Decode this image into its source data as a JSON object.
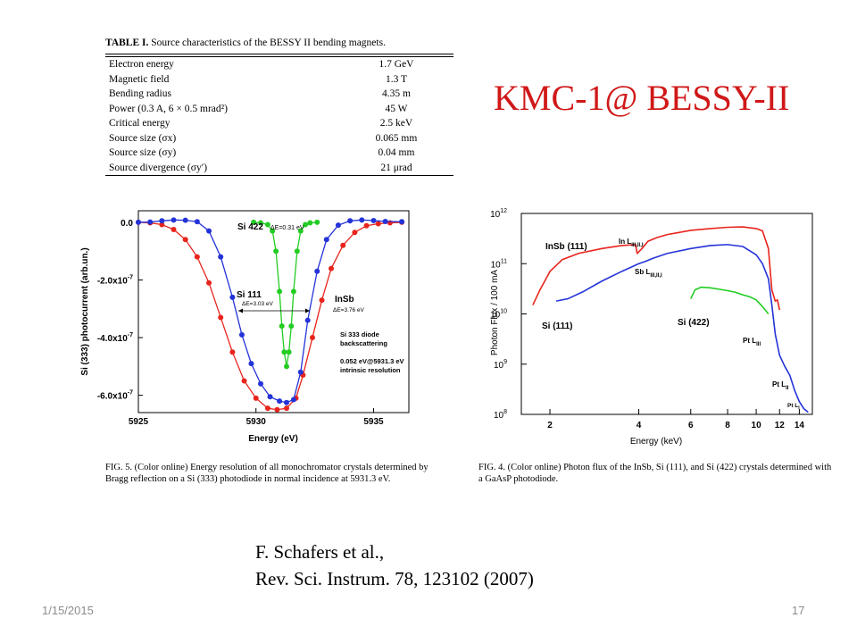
{
  "slide": {
    "title": "KMC-1@ BESSY-II",
    "reference_line1": "F. Schafers et al.,",
    "reference_line2": "Rev. Sci. Instrum. 78, 123102 (2007)",
    "footer_date": "1/15/2015",
    "page_number": "17"
  },
  "table": {
    "label": "TABLE I.",
    "caption": "Source characteristics of the BESSY II bending magnets.",
    "rows": [
      {
        "parameter": "Electron energy",
        "value": "1.7 GeV"
      },
      {
        "parameter": "Magnetic field",
        "value": "1.3 T"
      },
      {
        "parameter": "Bending radius",
        "value": "4.35 m"
      },
      {
        "parameter": "Power (0.3 A, 6 × 0.5 mrad²)",
        "value": "45 W"
      },
      {
        "parameter": "Critical energy",
        "value": "2.5 keV"
      },
      {
        "parameter": "Source size (σx)",
        "value": "0.065 mm"
      },
      {
        "parameter": "Source size (σy)",
        "value": "0.04 mm"
      },
      {
        "parameter": "Source divergence (σy′)",
        "value": "21 μrad"
      }
    ]
  },
  "fig5": {
    "caption": "FIG. 5. (Color online) Energy resolution of all monochromator crystals determined by Bragg reflection on a Si (333) photodiode in normal incidence at 5931.3 eV.",
    "annotations": {
      "si422": "Si 422",
      "de_si422": "ΔE=0.31 eV",
      "si111": "Si 111",
      "de_si111": "ΔE=3.03 eV",
      "insb": "InSb",
      "de_insb": "ΔE=3.76 eV",
      "diode1": "Si 333 diode",
      "diode2": "backscattering",
      "intr1": "0.052 eV@5931.3 eV",
      "intr2": "intrinsic resolution"
    }
  },
  "fig4": {
    "caption": "FIG. 4. (Color online) Photon flux of the InSb, Si (111), and Si (422) crystals determined with a GaAsP photodiode.",
    "annotations": {
      "insb": "InSb (111)",
      "si111": "Si (111)",
      "si422": "Si (422)",
      "in_edge": "In L",
      "in_sub": "III,II,I",
      "sb_edge": "Sb L",
      "sb_sub": "III,II,I",
      "pt3": "Pt L",
      "pt3_sub": "III",
      "pt2": "Pt L",
      "pt2_sub": "II",
      "pt1": "Pt L",
      "pt1_sub": "I"
    }
  },
  "chart_data": [
    {
      "type": "scatter",
      "title": "",
      "xlabel": "Energy (eV)",
      "ylabel": "Si (333) photocurrent (arb.un.)",
      "xlim": [
        5925,
        5936.5
      ],
      "ylim": [
        -6.6e-07,
        4e-08
      ],
      "x_ticks": [
        5925,
        5930,
        5935
      ],
      "x_tick_labels": [
        "5925",
        "5930",
        "5935"
      ],
      "y_ticks": [
        0,
        -2e-07,
        -4e-07,
        -6e-07
      ],
      "y_tick_labels": [
        "0.0",
        "-2.0x10",
        "-4.0x10",
        "-6.0x10"
      ],
      "y_tick_exponent": "-7",
      "series": [
        {
          "name": "InSb",
          "color": "#e8241c",
          "x": [
            5925.0,
            5925.5,
            5926.0,
            5926.5,
            5927.0,
            5927.5,
            5928.0,
            5928.5,
            5929.0,
            5929.5,
            5930.0,
            5930.5,
            5930.9,
            5931.3,
            5931.7,
            5932.0,
            5932.4,
            5932.8,
            5933.2,
            5933.7,
            5934.2,
            5934.7,
            5935.2,
            5935.7,
            5936.2
          ],
          "y": [
            0.0,
            -2e-09,
            -8e-09,
            -2.5e-08,
            -6e-08,
            -1.2e-07,
            -2.1e-07,
            -3.3e-07,
            -4.5e-07,
            -5.5e-07,
            -6.1e-07,
            -6.45e-07,
            -6.5e-07,
            -6.45e-07,
            -6.1e-07,
            -5.3e-07,
            -4e-07,
            -2.7e-07,
            -1.6e-07,
            -8e-08,
            -3.5e-08,
            -1.2e-08,
            -5e-09,
            -2e-09,
            0.0
          ]
        },
        {
          "name": "Si 111",
          "color": "#2433d8",
          "x": [
            5925.0,
            5925.5,
            5926.0,
            5926.5,
            5927.0,
            5927.5,
            5928.0,
            5928.5,
            5929.0,
            5929.4,
            5929.8,
            5930.2,
            5930.6,
            5931.0,
            5931.3,
            5931.6,
            5931.9,
            5932.2,
            5932.6,
            5933.0,
            5933.5,
            5934.0,
            5934.5,
            5935.0,
            5935.5,
            5936.2
          ],
          "y": [
            0.0,
            1e-09,
            5e-09,
            8e-09,
            7e-09,
            2e-09,
            -3e-08,
            -1.2e-07,
            -2.6e-07,
            -3.9e-07,
            -4.9e-07,
            -5.6e-07,
            -6.05e-07,
            -6.2e-07,
            -6.25e-07,
            -6.15e-07,
            -5.2e-07,
            -3.4e-07,
            -1.7e-07,
            -6e-08,
            -1e-08,
            5e-09,
            8e-09,
            6e-09,
            3e-09,
            2e-09
          ]
        },
        {
          "name": "Si 422",
          "color": "#22cc22",
          "x": [
            5929.9,
            5930.2,
            5930.5,
            5930.7,
            5930.85,
            5931.0,
            5931.1,
            5931.2,
            5931.3,
            5931.4,
            5931.5,
            5931.6,
            5931.75,
            5931.9,
            5932.1,
            5932.3,
            5932.6
          ],
          "y": [
            0.0,
            -2e-09,
            -8e-09,
            -3e-08,
            -1e-07,
            -2.4e-07,
            -3.6e-07,
            -4.5e-07,
            -5e-07,
            -4.5e-07,
            -3.6e-07,
            -2.4e-07,
            -1e-07,
            -3e-08,
            -8e-09,
            -2e-09,
            0.0
          ]
        }
      ]
    },
    {
      "type": "line",
      "title": "",
      "xlabel": "Energy (keV)",
      "ylabel": "Photon Flux / 100 mA",
      "xlim": [
        1.6,
        15.5
      ],
      "ylim": [
        100000000.0,
        1000000000000.0
      ],
      "x_scale": "log",
      "y_scale": "log",
      "x_ticks": [
        2,
        4,
        6,
        8,
        10,
        12,
        14
      ],
      "x_tick_labels": [
        "2",
        "4",
        "6",
        "8",
        "10",
        "12",
        "14"
      ],
      "y_ticks": [
        100000000.0,
        1000000000.0,
        10000000000.0,
        100000000000.0,
        1000000000000.0
      ],
      "y_tick_labels": [
        "10",
        "10",
        "10",
        "10",
        "10"
      ],
      "y_tick_exponents": [
        "8",
        "9",
        "10",
        "11",
        "12"
      ],
      "series": [
        {
          "name": "InSb (111)",
          "color": "#e8241c",
          "x": [
            1.75,
            1.85,
            2.0,
            2.2,
            2.5,
            3.0,
            3.5,
            3.9,
            3.95,
            4.1,
            4.3,
            4.6,
            5.0,
            5.5,
            6.0,
            7.0,
            8.0,
            9.0,
            10.0,
            10.5,
            11.0,
            11.3,
            11.6,
            11.8,
            12.0
          ],
          "y": [
            15000000000.0,
            30000000000.0,
            70000000000.0,
            120000000000.0,
            160000000000.0,
            200000000000.0,
            230000000000.0,
            240000000000.0,
            160000000000.0,
            200000000000.0,
            280000000000.0,
            330000000000.0,
            380000000000.0,
            420000000000.0,
            460000000000.0,
            500000000000.0,
            530000000000.0,
            540000000000.0,
            500000000000.0,
            450000000000.0,
            200000000000.0,
            30000000000.0,
            18000000000.0,
            19000000000.0,
            12000000000.0
          ]
        },
        {
          "name": "Si (111)",
          "color": "#2433d8",
          "x": [
            2.1,
            2.3,
            2.6,
            3.0,
            3.5,
            4.0,
            4.2,
            4.5,
            5.0,
            6.0,
            7.0,
            8.0,
            9.0,
            10.0,
            10.5,
            11.0,
            11.3,
            11.6,
            12.0,
            12.5,
            13.0,
            13.5,
            14.0,
            14.5,
            15.0
          ],
          "y": [
            18000000000.0,
            20000000000.0,
            28000000000.0,
            45000000000.0,
            70000000000.0,
            100000000000.0,
            110000000000.0,
            130000000000.0,
            160000000000.0,
            200000000000.0,
            230000000000.0,
            240000000000.0,
            220000000000.0,
            150000000000.0,
            100000000000.0,
            50000000000.0,
            15000000000.0,
            4000000000.0,
            1500000000.0,
            900000000.0,
            600000000.0,
            300000000.0,
            180000000.0,
            130000000.0,
            110000000.0
          ]
        },
        {
          "name": "Si (422)",
          "color": "#22cc22",
          "x": [
            6.0,
            6.2,
            6.5,
            7.0,
            7.5,
            8.0,
            8.5,
            9.0,
            9.5,
            10.0,
            10.5,
            11.0
          ],
          "y": [
            20000000000.0,
            30000000000.0,
            34000000000.0,
            33000000000.0,
            31000000000.0,
            29000000000.0,
            27000000000.0,
            24000000000.0,
            22000000000.0,
            19000000000.0,
            14000000000.0,
            10000000000.0
          ]
        }
      ]
    }
  ],
  "colors": {
    "title_red": "#d01818",
    "insb_red": "#e8241c",
    "si111_blue": "#2433d8",
    "si422_green": "#22cc22",
    "footer_gray": "#8c8c8c"
  }
}
